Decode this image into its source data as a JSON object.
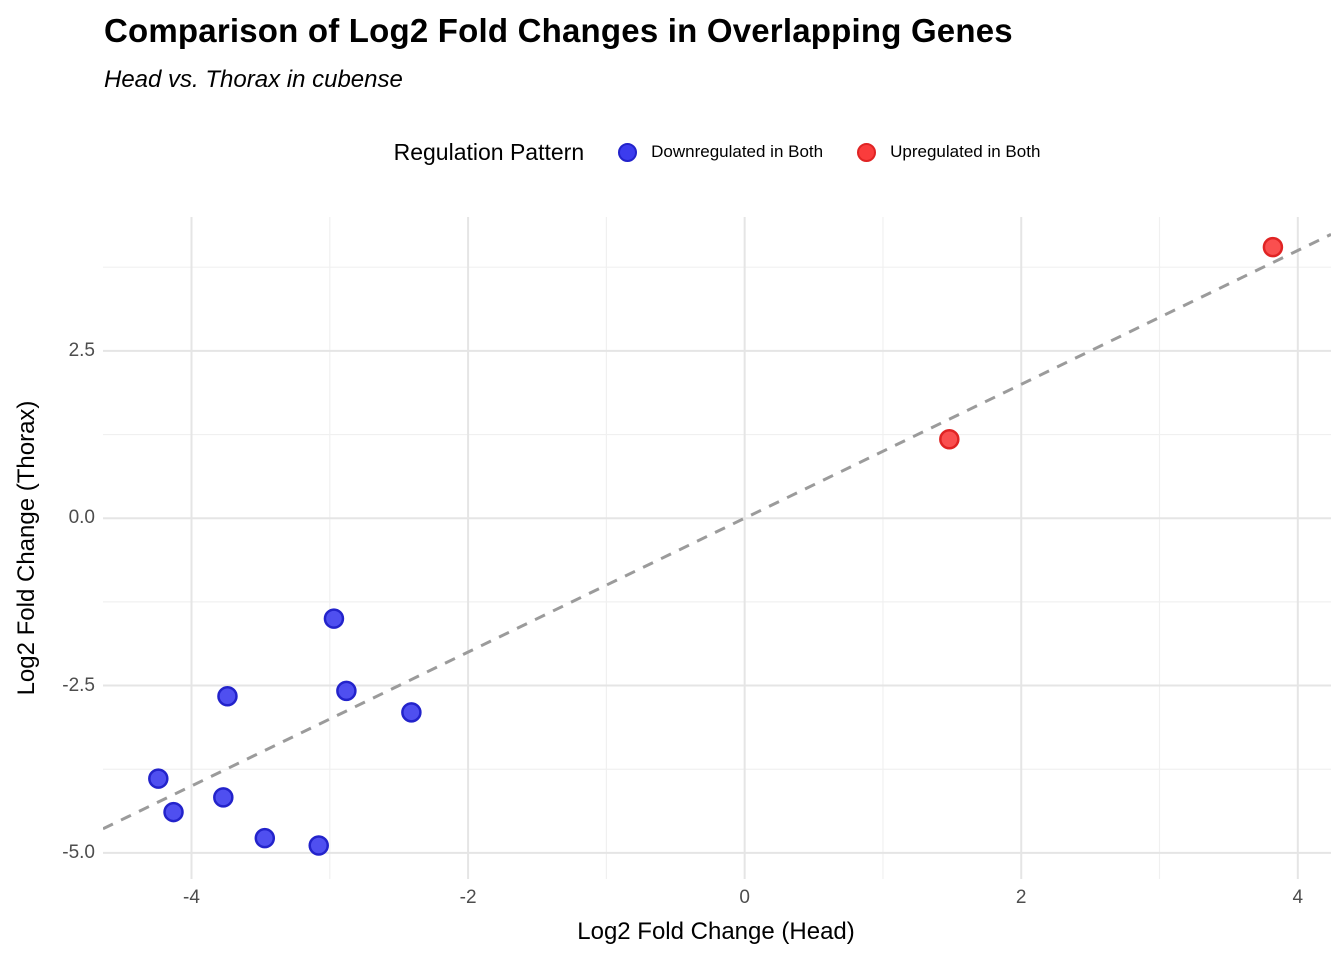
{
  "chart_data": {
    "type": "scatter",
    "title": "Comparison of Log2 Fold Changes in Overlapping Genes",
    "subtitle": "Head vs. Thorax in cubense",
    "xlabel": "Log2 Fold Change (Head)",
    "ylabel": "Log2 Fold Change (Thorax)",
    "legend_title": "Regulation Pattern",
    "legend_position": "top",
    "grid": "on",
    "background_color": "#ffffff",
    "xlim": [
      -4.64,
      4.24
    ],
    "ylim": [
      -5.39,
      4.5
    ],
    "x_major_ticks": [
      -4,
      -2,
      0,
      2,
      4
    ],
    "x_minor_ticks": [
      -3,
      -1,
      1,
      3
    ],
    "y_major_ticks": [
      -5.0,
      -2.5,
      0.0,
      2.5
    ],
    "y_minor_ticks": [
      -3.75,
      -1.25,
      1.25,
      3.75
    ],
    "x_tick_labels": [
      "-4",
      "-2",
      "0",
      "2",
      "4"
    ],
    "y_tick_labels": [
      "-5.0",
      "-2.5",
      "0.0",
      "2.5"
    ],
    "reference_line": {
      "description": "identity line y = x",
      "x1": -4.64,
      "y1": -4.64,
      "x2": 4.24,
      "y2": 4.24,
      "color": "#9b9b9b",
      "style": "dashed"
    },
    "series": [
      {
        "name": "Downregulated in Both",
        "color": "#3c3cee",
        "border_color": "#2323cb",
        "points": [
          {
            "x": -2.97,
            "y": -1.5
          },
          {
            "x": -3.74,
            "y": -2.66
          },
          {
            "x": -2.88,
            "y": -2.58
          },
          {
            "x": -2.41,
            "y": -2.9
          },
          {
            "x": -4.24,
            "y": -3.89
          },
          {
            "x": -3.77,
            "y": -4.17
          },
          {
            "x": -4.13,
            "y": -4.39
          },
          {
            "x": -3.47,
            "y": -4.78
          },
          {
            "x": -3.08,
            "y": -4.89
          }
        ]
      },
      {
        "name": "Upregulated in Both",
        "color": "#fa3c3c",
        "border_color": "#e02424",
        "points": [
          {
            "x": 1.48,
            "y": 1.18
          },
          {
            "x": 3.82,
            "y": 4.05
          }
        ]
      }
    ]
  }
}
